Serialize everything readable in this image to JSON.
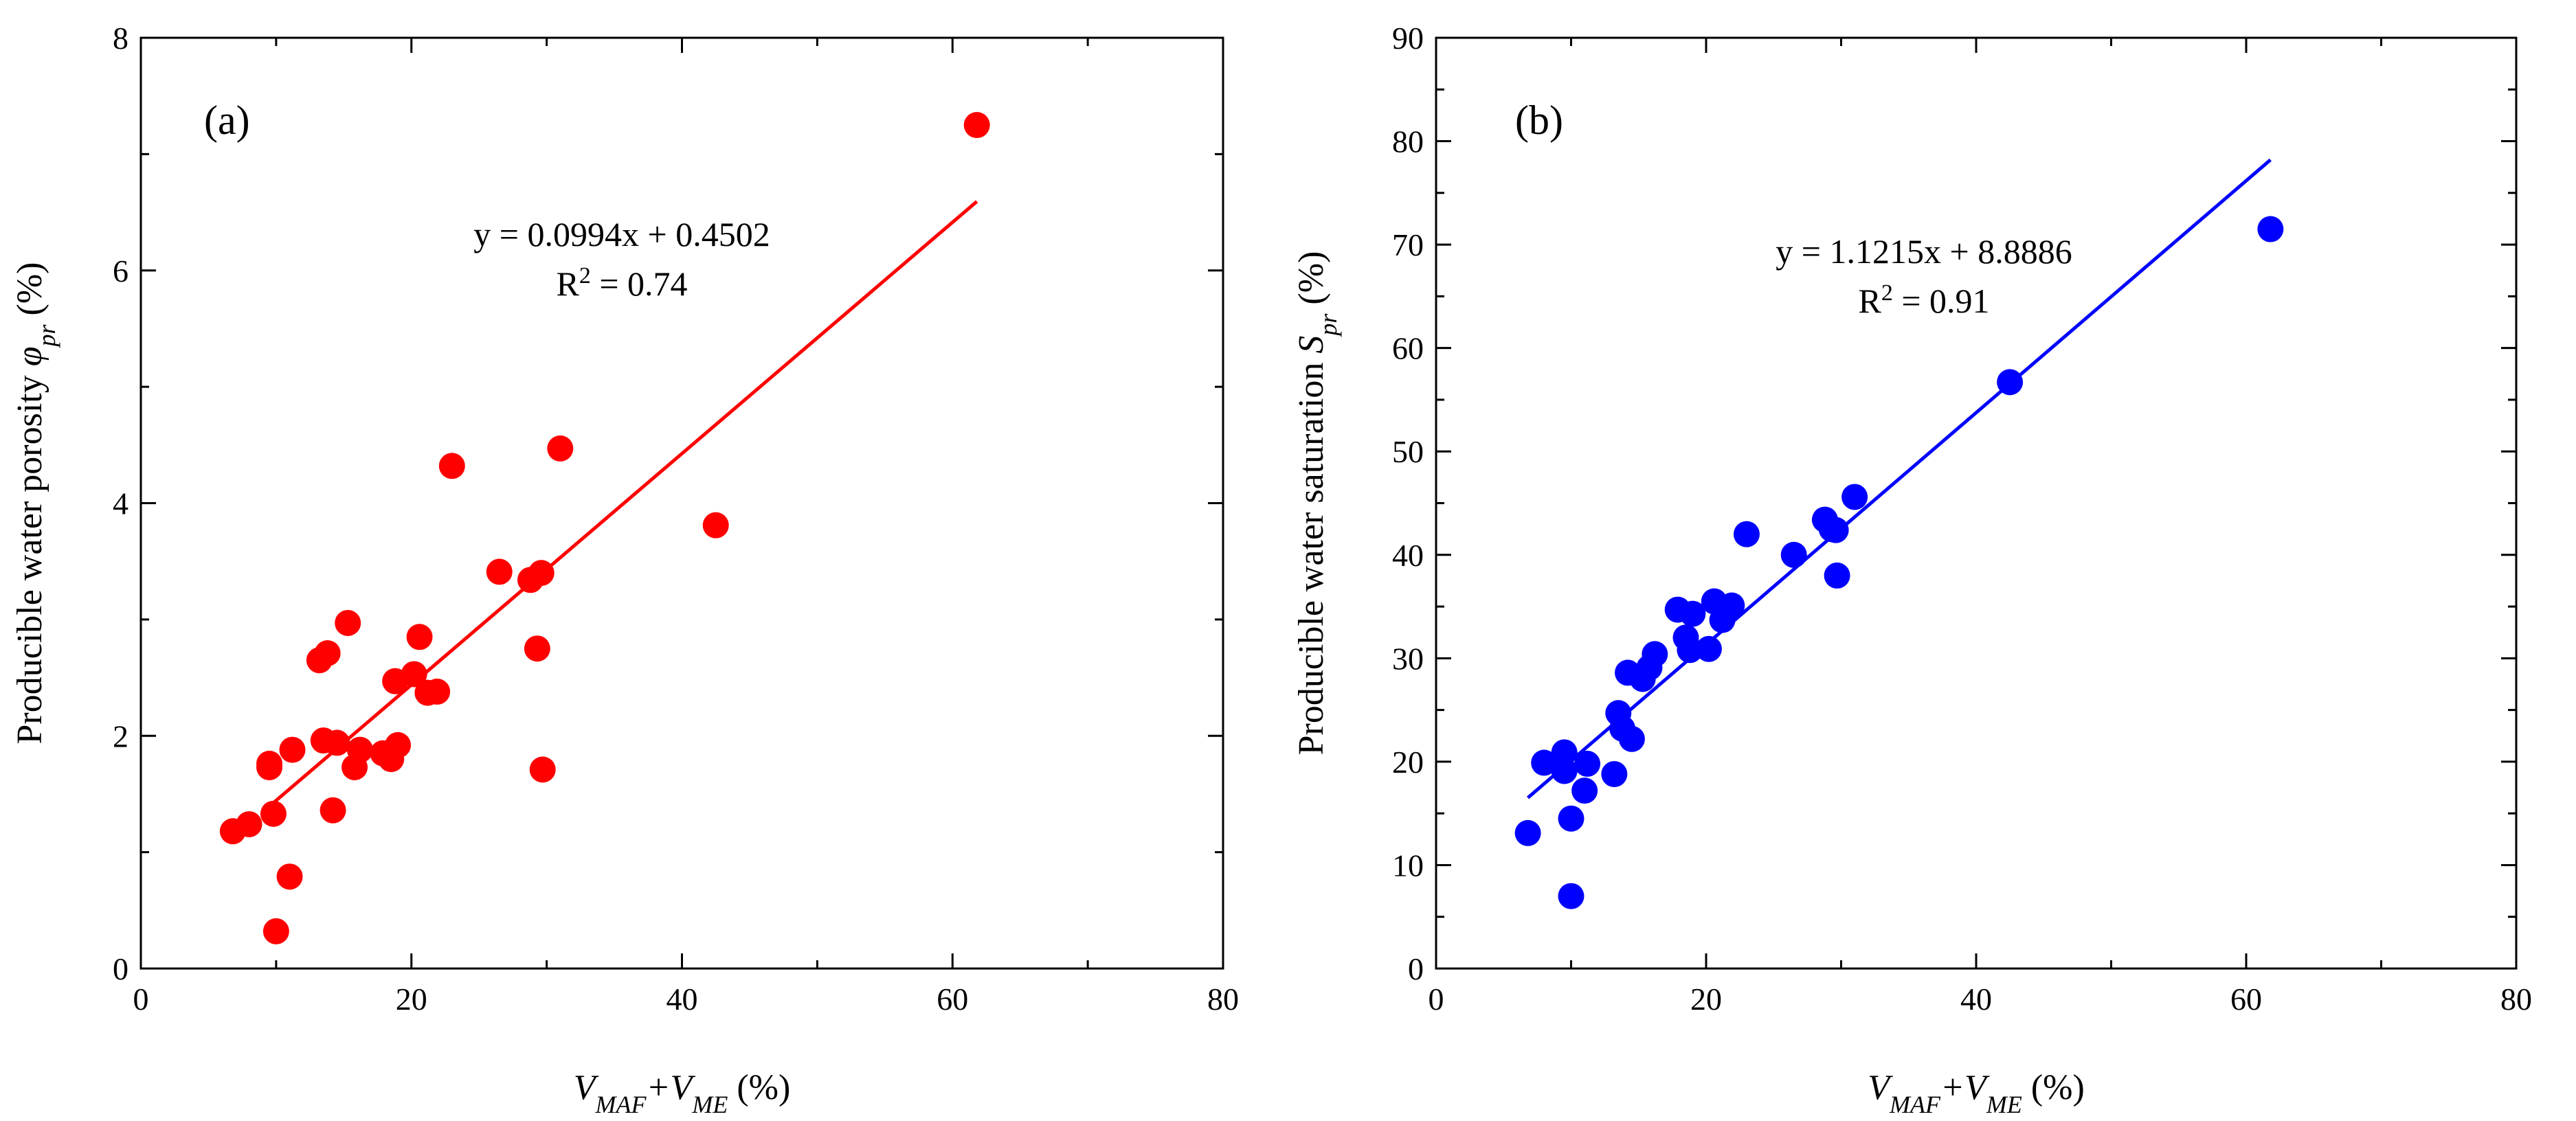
{
  "chart_data": [
    {
      "type": "scatter",
      "panel_label": "(a)",
      "xlabel": {
        "main": "V",
        "sub1": "MAF",
        "plus": "+V",
        "sub2": "ME",
        "unit": " (%)"
      },
      "ylabel": {
        "main": "Producible water porosity ",
        "symbol": "φ",
        "sub": "pr",
        "unit": " (%)"
      },
      "xlim": [
        0,
        80
      ],
      "ylim": [
        0,
        8
      ],
      "xticks": [
        0,
        20,
        40,
        60,
        80
      ],
      "yticks": [
        0,
        2,
        4,
        6,
        8
      ],
      "equation": "y = 0.0994x + 0.4502",
      "r2_label": {
        "prefix": "R",
        "sup": "2",
        "suffix": " = 0.74"
      },
      "color": "#ff0000",
      "fit": {
        "slope": 0.0994,
        "intercept": 0.4502,
        "x_range": [
          9.8,
          61.8
        ]
      },
      "x": [
        6.8,
        8.0,
        9.5,
        9.5,
        9.8,
        10.0,
        11.0,
        11.2,
        13.2,
        13.5,
        13.8,
        14.2,
        14.5,
        15.3,
        15.8,
        16.2,
        17.9,
        18.5,
        18.8,
        19.0,
        20.2,
        20.6,
        21.2,
        21.9,
        23.0,
        26.5,
        28.8,
        29.3,
        29.6,
        29.7,
        31.0,
        42.5,
        61.8
      ],
      "y": [
        1.18,
        1.24,
        1.76,
        1.73,
        1.33,
        0.32,
        0.79,
        1.88,
        2.65,
        1.96,
        2.71,
        1.36,
        1.94,
        2.97,
        1.73,
        1.88,
        1.85,
        1.8,
        2.47,
        1.92,
        2.53,
        2.85,
        2.37,
        2.38,
        4.32,
        3.41,
        3.34,
        2.75,
        3.4,
        1.71,
        4.47,
        3.81,
        7.25
      ]
    },
    {
      "type": "scatter",
      "panel_label": "(b)",
      "xlabel": {
        "main": "V",
        "sub1": "MAF",
        "plus": "+V",
        "sub2": "ME",
        "unit": " (%)"
      },
      "ylabel": {
        "main": "Producible water saturation ",
        "symbol": "S",
        "sub": "pr",
        "unit": " (%)"
      },
      "xlim": [
        0,
        80
      ],
      "ylim": [
        0,
        90
      ],
      "xticks": [
        0,
        20,
        40,
        60,
        80
      ],
      "yticks": [
        0,
        10,
        20,
        30,
        40,
        50,
        60,
        70,
        80,
        90
      ],
      "equation": "y = 1.1215x + 8.8886",
      "r2_label": {
        "prefix": "R",
        "sup": "2",
        "suffix": " = 0.91"
      },
      "color": "#0000ff",
      "fit": {
        "slope": 1.1215,
        "intercept": 8.8886,
        "x_range": [
          6.8,
          61.8
        ]
      },
      "x": [
        6.8,
        8.0,
        9.5,
        9.5,
        10.0,
        10.0,
        11.0,
        11.2,
        13.2,
        13.5,
        13.8,
        14.2,
        14.5,
        15.3,
        15.8,
        16.2,
        17.9,
        18.5,
        18.8,
        19.0,
        20.2,
        20.6,
        21.2,
        21.9,
        23.0,
        26.5,
        28.8,
        29.3,
        29.6,
        29.7,
        31.0,
        42.5,
        61.8
      ],
      "y": [
        13.1,
        19.9,
        19.1,
        20.9,
        14.5,
        7.0,
        17.2,
        19.8,
        18.8,
        24.7,
        23.2,
        28.6,
        22.2,
        28.0,
        29.1,
        30.4,
        34.7,
        32.0,
        30.8,
        34.3,
        30.9,
        35.5,
        33.7,
        35.1,
        42.0,
        40.0,
        43.4,
        42.5,
        42.4,
        38.0,
        45.6,
        56.7,
        71.5
      ]
    }
  ]
}
